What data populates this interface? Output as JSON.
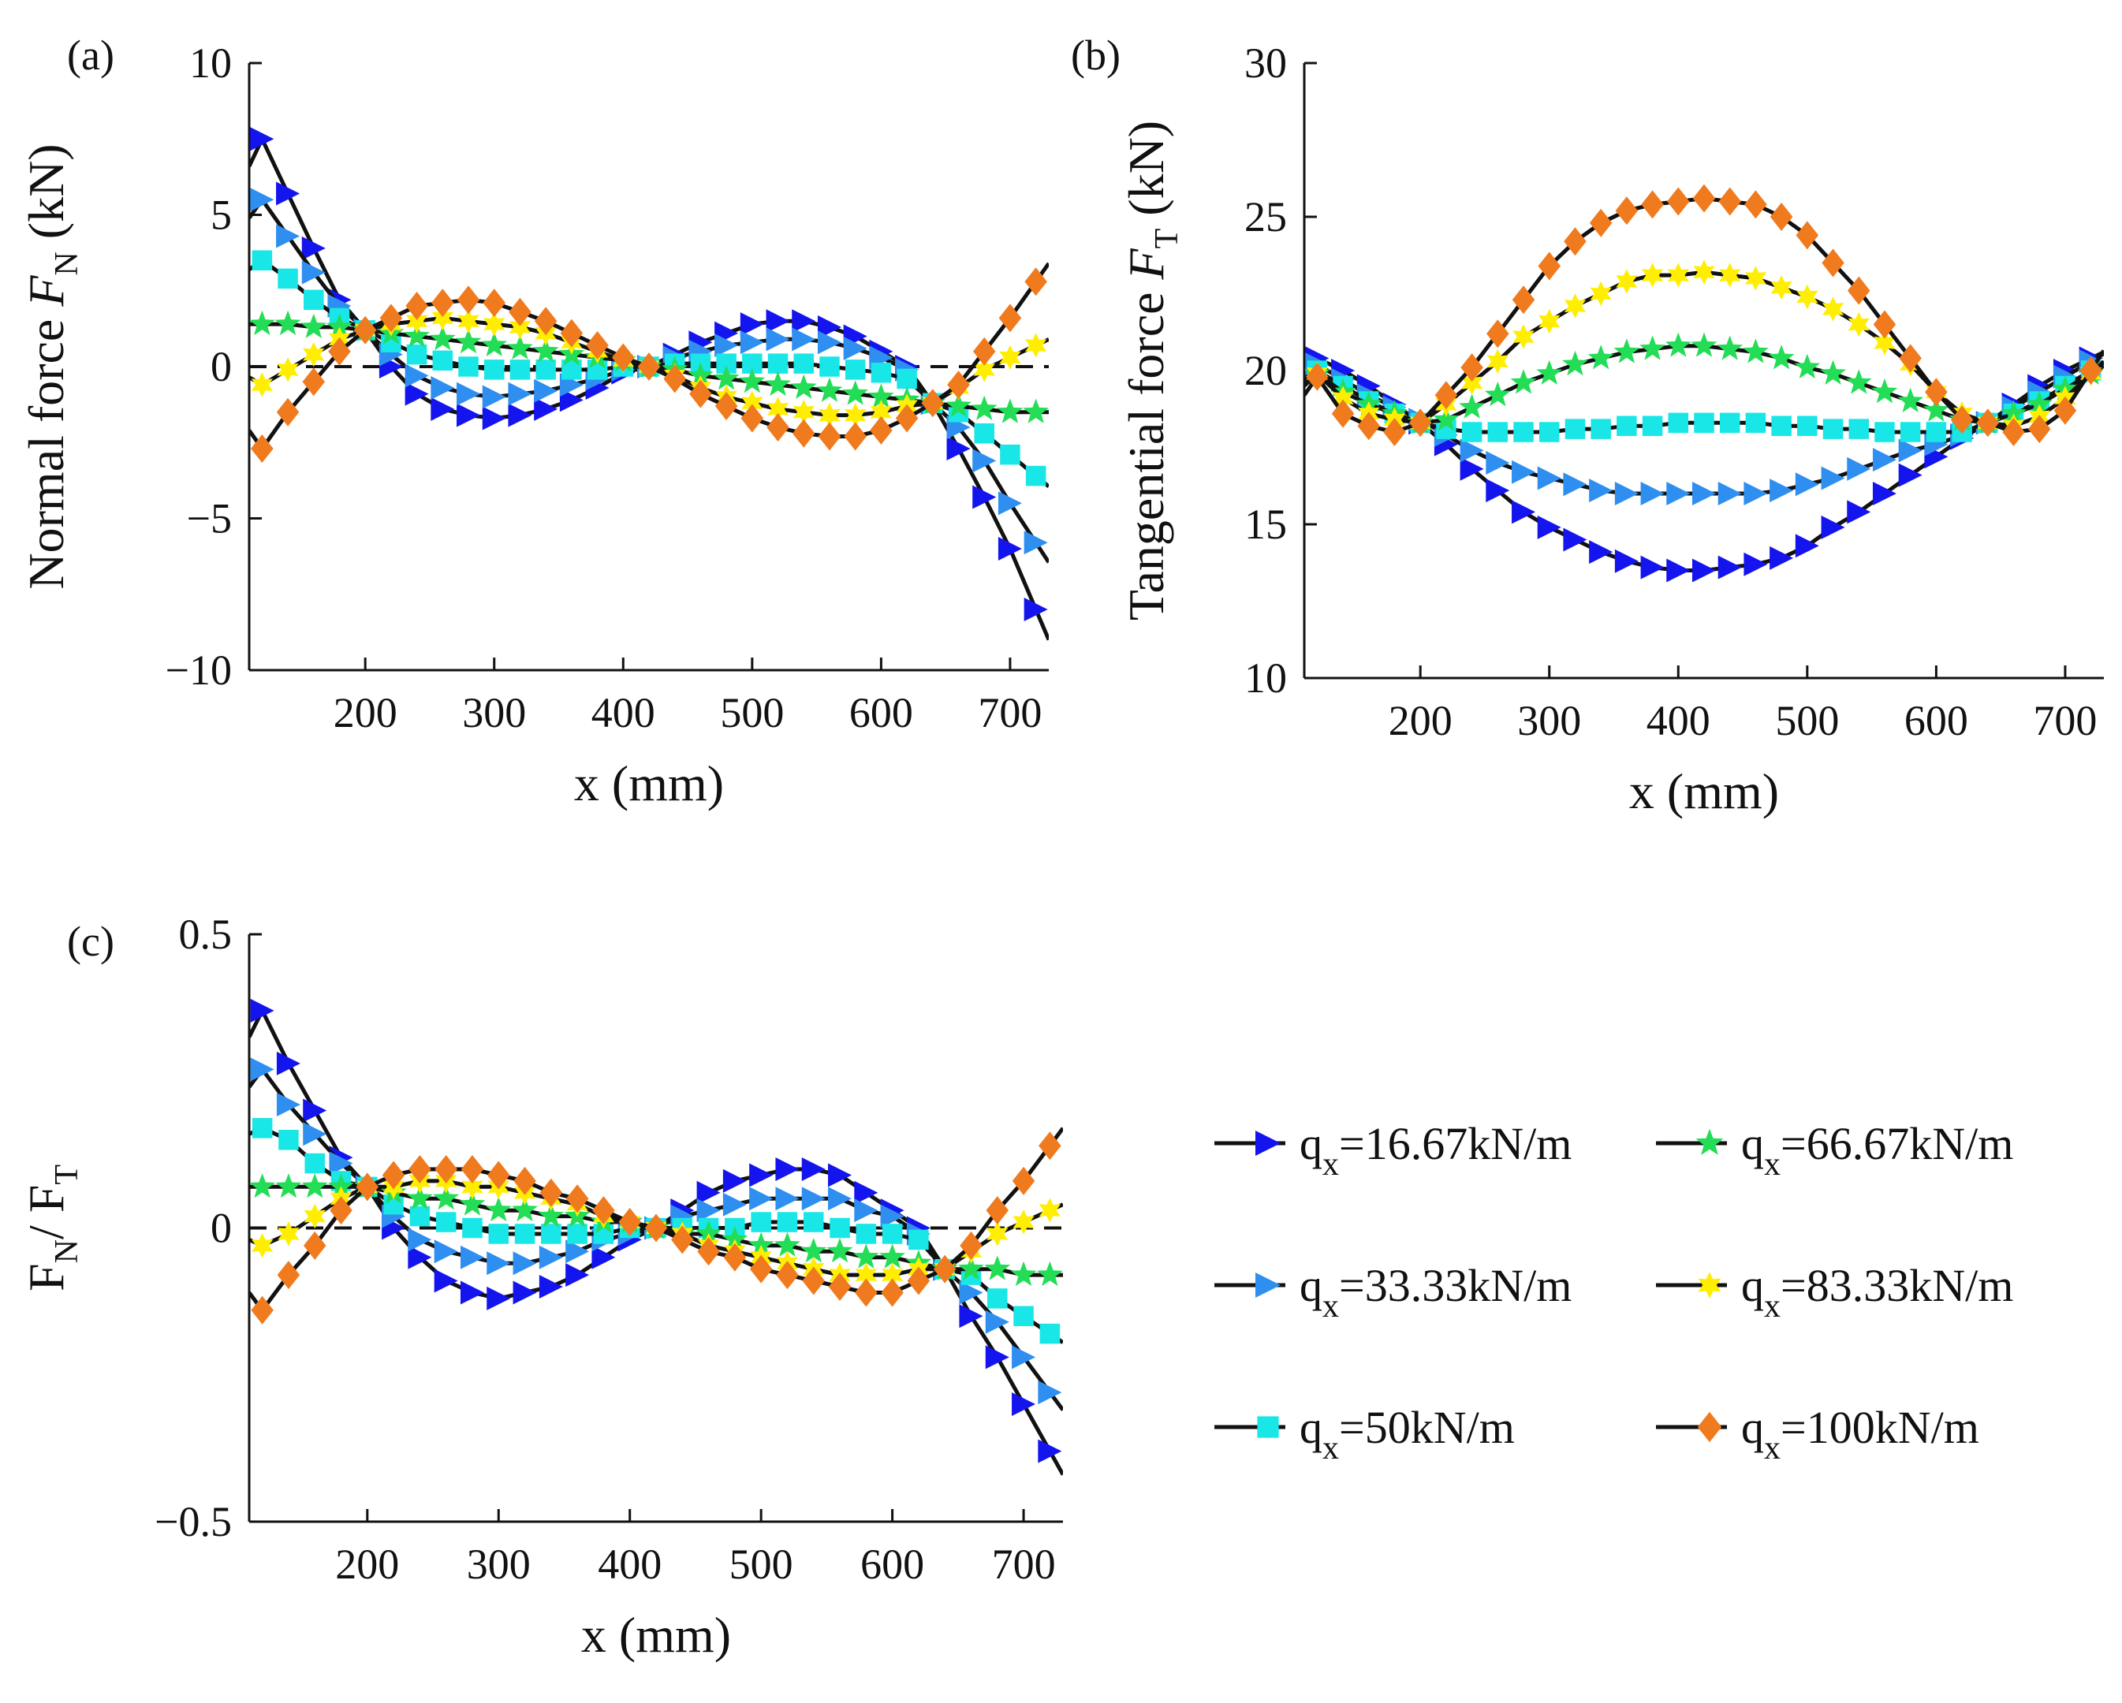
{
  "figure": {
    "legend_title": "",
    "legend": [
      {
        "label": "q",
        "sub": "x",
        "rest": "=16.67kN/m",
        "color": "#1414ee",
        "marker": "tri-left"
      },
      {
        "label": "q",
        "sub": "x",
        "rest": "=66.67kN/m",
        "color": "#22dd55",
        "marker": "star"
      },
      {
        "label": "q",
        "sub": "x",
        "rest": "=33.33kN/m",
        "color": "#2f8ff0",
        "marker": "tri-right"
      },
      {
        "label": "q",
        "sub": "x",
        "rest": "=83.33kN/m",
        "color": "#ffee00",
        "marker": "hexagram"
      },
      {
        "label": "q",
        "sub": "x",
        "rest": "=50kN/m",
        "color": "#19e6e6",
        "marker": "square"
      },
      {
        "label": "q",
        "sub": "x",
        "rest": "=100kN/m",
        "color": "#f07a1e",
        "marker": "diamond"
      }
    ]
  },
  "chart_data": [
    {
      "type": "line",
      "panel": "(a)",
      "xlabel": "x (mm)",
      "ylabel_main": "Normal force  ",
      "ylabel_sym": "F",
      "ylabel_sub": "N",
      "ylabel_unit": " (kN)",
      "xlim": [
        110,
        730
      ],
      "ylim": [
        -10,
        10
      ],
      "xticks": [
        200,
        300,
        400,
        500,
        600,
        700
      ],
      "yticks": [
        -10,
        -5,
        0,
        5,
        10
      ],
      "ytick_labels": [
        "−10",
        "−5",
        "0",
        "5",
        "10"
      ],
      "zero_line": true,
      "x": [
        120,
        140,
        160,
        180,
        200,
        220,
        240,
        260,
        280,
        300,
        320,
        340,
        360,
        380,
        400,
        420,
        440,
        460,
        480,
        500,
        520,
        540,
        560,
        580,
        600,
        620,
        640,
        660,
        680,
        700,
        720
      ],
      "series": [
        {
          "name": "qx=16.67kN/m",
          "values": [
            7.5,
            5.7,
            3.9,
            2.2,
            1.2,
            0.0,
            -0.9,
            -1.4,
            -1.6,
            -1.7,
            -1.6,
            -1.4,
            -1.1,
            -0.7,
            -0.2,
            0.0,
            0.4,
            0.8,
            1.1,
            1.4,
            1.5,
            1.5,
            1.3,
            1.0,
            0.5,
            0.0,
            -1.2,
            -2.7,
            -4.3,
            -6.0,
            -8.0
          ]
        },
        {
          "name": "qx=33.33kN/m",
          "values": [
            5.5,
            4.3,
            3.1,
            2.0,
            1.2,
            0.4,
            -0.3,
            -0.7,
            -0.9,
            -1.0,
            -0.9,
            -0.8,
            -0.6,
            -0.4,
            -0.1,
            0.0,
            0.3,
            0.5,
            0.7,
            0.8,
            0.9,
            0.9,
            0.8,
            0.6,
            0.3,
            -0.1,
            -1.2,
            -2.0,
            -3.1,
            -4.5,
            -5.8
          ]
        },
        {
          "name": "qx=50kN/m",
          "values": [
            3.5,
            2.9,
            2.2,
            1.6,
            1.2,
            0.8,
            0.4,
            0.2,
            0.0,
            -0.1,
            -0.1,
            -0.1,
            -0.1,
            -0.1,
            0.0,
            0.0,
            0.1,
            0.1,
            0.1,
            0.1,
            0.1,
            0.1,
            0.0,
            -0.1,
            -0.2,
            -0.4,
            -1.2,
            -1.5,
            -2.2,
            -2.9,
            -3.6
          ]
        },
        {
          "name": "qx=66.67kN/m",
          "values": [
            1.4,
            1.4,
            1.3,
            1.3,
            1.2,
            1.1,
            1.0,
            0.9,
            0.8,
            0.7,
            0.6,
            0.5,
            0.4,
            0.3,
            0.2,
            0.0,
            -0.1,
            -0.3,
            -0.4,
            -0.5,
            -0.6,
            -0.7,
            -0.8,
            -0.9,
            -1.0,
            -1.1,
            -1.2,
            -1.3,
            -1.4,
            -1.5,
            -1.5
          ]
        },
        {
          "name": "qx=83.33kN/m",
          "values": [
            -0.6,
            -0.1,
            0.4,
            0.9,
            1.2,
            1.4,
            1.5,
            1.6,
            1.5,
            1.4,
            1.3,
            1.1,
            0.8,
            0.5,
            0.2,
            0.0,
            -0.3,
            -0.7,
            -1.0,
            -1.2,
            -1.4,
            -1.5,
            -1.6,
            -1.6,
            -1.5,
            -1.3,
            -1.2,
            -0.7,
            -0.1,
            0.3,
            0.7
          ]
        },
        {
          "name": "qx=100kN/m",
          "values": [
            -2.7,
            -1.5,
            -0.5,
            0.5,
            1.2,
            1.6,
            2.0,
            2.1,
            2.2,
            2.1,
            1.8,
            1.5,
            1.1,
            0.7,
            0.3,
            0.0,
            -0.4,
            -0.9,
            -1.3,
            -1.7,
            -2.0,
            -2.2,
            -2.3,
            -2.3,
            -2.1,
            -1.7,
            -1.2,
            -0.6,
            0.5,
            1.6,
            2.8
          ]
        }
      ]
    },
    {
      "type": "line",
      "panel": "(b)",
      "xlabel": "x (mm)",
      "ylabel_main": "Tangential force  ",
      "ylabel_sym": "F",
      "ylabel_sub": "T",
      "ylabel_unit": " (kN)",
      "xlim": [
        110,
        730
      ],
      "ylim": [
        10,
        30
      ],
      "xticks": [
        200,
        300,
        400,
        500,
        600,
        700
      ],
      "yticks": [
        10,
        15,
        20,
        25,
        30
      ],
      "ytick_labels": [
        "10",
        "15",
        "20",
        "25",
        "30"
      ],
      "zero_line": false,
      "x": [
        120,
        140,
        160,
        180,
        200,
        220,
        240,
        260,
        280,
        300,
        320,
        340,
        360,
        380,
        400,
        420,
        440,
        460,
        480,
        500,
        520,
        540,
        560,
        580,
        600,
        620,
        640,
        660,
        680,
        700,
        720
      ],
      "series": [
        {
          "name": "qx=16.67kN/m",
          "values": [
            20.4,
            20.0,
            19.5,
            18.9,
            18.3,
            17.6,
            16.8,
            16.1,
            15.4,
            14.9,
            14.5,
            14.1,
            13.8,
            13.6,
            13.5,
            13.5,
            13.6,
            13.7,
            13.9,
            14.3,
            14.9,
            15.4,
            16.0,
            16.6,
            17.2,
            17.8,
            18.3,
            18.9,
            19.5,
            20.0,
            20.4
          ]
        },
        {
          "name": "qx=33.33kN/m",
          "values": [
            20.2,
            19.7,
            19.2,
            18.8,
            18.4,
            17.9,
            17.4,
            17.0,
            16.7,
            16.5,
            16.3,
            16.1,
            16.0,
            16.0,
            16.0,
            16.0,
            16.0,
            16.0,
            16.1,
            16.3,
            16.5,
            16.8,
            17.1,
            17.4,
            17.6,
            17.9,
            18.3,
            18.8,
            19.3,
            19.8,
            20.3
          ]
        },
        {
          "name": "qx=50kN/m",
          "values": [
            20.0,
            19.5,
            19.0,
            18.6,
            18.3,
            18.1,
            18.0,
            18.0,
            18.0,
            18.0,
            18.1,
            18.1,
            18.2,
            18.2,
            18.3,
            18.3,
            18.3,
            18.3,
            18.2,
            18.2,
            18.1,
            18.1,
            18.0,
            18.0,
            18.0,
            18.0,
            18.3,
            18.6,
            19.0,
            19.5,
            20.0
          ]
        },
        {
          "name": "qx=66.67kN/m",
          "values": [
            19.9,
            19.3,
            18.9,
            18.6,
            18.3,
            18.4,
            18.8,
            19.2,
            19.6,
            19.9,
            20.2,
            20.4,
            20.6,
            20.7,
            20.8,
            20.8,
            20.7,
            20.6,
            20.4,
            20.1,
            19.9,
            19.6,
            19.3,
            19.0,
            18.7,
            18.4,
            18.3,
            18.6,
            18.9,
            19.4,
            19.9
          ]
        },
        {
          "name": "qx=83.33kN/m",
          "values": [
            19.9,
            19.1,
            18.6,
            18.4,
            18.3,
            18.9,
            19.6,
            20.3,
            21.1,
            21.6,
            22.1,
            22.5,
            22.9,
            23.1,
            23.1,
            23.2,
            23.1,
            23.0,
            22.7,
            22.4,
            22.0,
            21.5,
            20.9,
            20.2,
            19.3,
            18.6,
            18.3,
            18.2,
            18.5,
            19.1,
            19.9
          ]
        },
        {
          "name": "qx=100kN/m",
          "values": [
            19.8,
            18.6,
            18.2,
            18.0,
            18.3,
            19.2,
            20.1,
            21.2,
            22.3,
            23.4,
            24.2,
            24.8,
            25.2,
            25.4,
            25.5,
            25.6,
            25.5,
            25.4,
            25.0,
            24.4,
            23.5,
            22.6,
            21.5,
            20.4,
            19.3,
            18.4,
            18.3,
            18.0,
            18.1,
            18.7,
            20.0
          ]
        }
      ]
    },
    {
      "type": "line",
      "panel": "(c)",
      "xlabel": "x (mm)",
      "ylabel_main": "",
      "ylabel_sym": "F",
      "ylabel_sub": "N",
      "ylabel_unit": "/ F",
      "ylabel_sub2": "T",
      "xlim": [
        110,
        730
      ],
      "ylim": [
        -0.5,
        0.5
      ],
      "xticks": [
        200,
        300,
        400,
        500,
        600,
        700
      ],
      "yticks": [
        -0.5,
        0,
        0.5
      ],
      "ytick_labels": [
        "−0.5",
        "0",
        "0.5"
      ],
      "zero_line": true,
      "x": [
        120,
        140,
        160,
        180,
        200,
        220,
        240,
        260,
        280,
        300,
        320,
        340,
        360,
        380,
        400,
        420,
        440,
        460,
        480,
        500,
        520,
        540,
        560,
        580,
        600,
        620,
        640,
        660,
        680,
        700,
        720
      ],
      "series": [
        {
          "name": "qx=16.67kN/m",
          "values": [
            0.37,
            0.28,
            0.2,
            0.12,
            0.07,
            0.0,
            -0.05,
            -0.09,
            -0.11,
            -0.12,
            -0.11,
            -0.1,
            -0.08,
            -0.05,
            -0.02,
            0.0,
            0.03,
            0.06,
            0.08,
            0.09,
            0.1,
            0.1,
            0.09,
            0.06,
            0.03,
            0.0,
            -0.07,
            -0.15,
            -0.22,
            -0.3,
            -0.38
          ]
        },
        {
          "name": "qx=33.33kN/m",
          "values": [
            0.27,
            0.21,
            0.16,
            0.11,
            0.07,
            0.02,
            -0.02,
            -0.04,
            -0.05,
            -0.06,
            -0.06,
            -0.05,
            -0.04,
            -0.02,
            -0.01,
            0.0,
            0.02,
            0.03,
            0.04,
            0.05,
            0.05,
            0.05,
            0.05,
            0.03,
            0.02,
            -0.01,
            -0.07,
            -0.11,
            -0.16,
            -0.22,
            -0.28
          ]
        },
        {
          "name": "qx=50kN/m",
          "values": [
            0.17,
            0.15,
            0.11,
            0.08,
            0.07,
            0.04,
            0.02,
            0.01,
            0.0,
            -0.01,
            -0.01,
            -0.01,
            -0.01,
            -0.01,
            0.0,
            0.0,
            0.0,
            0.0,
            0.0,
            0.01,
            0.01,
            0.01,
            0.0,
            -0.01,
            -0.01,
            -0.02,
            -0.07,
            -0.08,
            -0.12,
            -0.15,
            -0.18
          ]
        },
        {
          "name": "qx=66.67kN/m",
          "values": [
            0.07,
            0.07,
            0.07,
            0.07,
            0.07,
            0.06,
            0.05,
            0.05,
            0.04,
            0.03,
            0.03,
            0.02,
            0.02,
            0.01,
            0.01,
            0.0,
            -0.01,
            -0.01,
            -0.02,
            -0.03,
            -0.03,
            -0.04,
            -0.04,
            -0.05,
            -0.05,
            -0.06,
            -0.07,
            -0.07,
            -0.07,
            -0.08,
            -0.08
          ]
        },
        {
          "name": "qx=83.33kN/m",
          "values": [
            -0.03,
            -0.01,
            0.02,
            0.05,
            0.07,
            0.07,
            0.08,
            0.08,
            0.07,
            0.07,
            0.06,
            0.05,
            0.04,
            0.02,
            0.01,
            0.0,
            -0.01,
            -0.03,
            -0.04,
            -0.05,
            -0.06,
            -0.07,
            -0.08,
            -0.08,
            -0.08,
            -0.07,
            -0.07,
            -0.04,
            -0.01,
            0.01,
            0.03
          ]
        },
        {
          "name": "qx=100kN/m",
          "values": [
            -0.14,
            -0.08,
            -0.03,
            0.03,
            0.07,
            0.09,
            0.1,
            0.1,
            0.1,
            0.09,
            0.08,
            0.06,
            0.05,
            0.03,
            0.01,
            0.0,
            -0.02,
            -0.04,
            -0.05,
            -0.07,
            -0.08,
            -0.09,
            -0.1,
            -0.11,
            -0.11,
            -0.09,
            -0.07,
            -0.03,
            0.03,
            0.08,
            0.14
          ]
        }
      ]
    }
  ]
}
